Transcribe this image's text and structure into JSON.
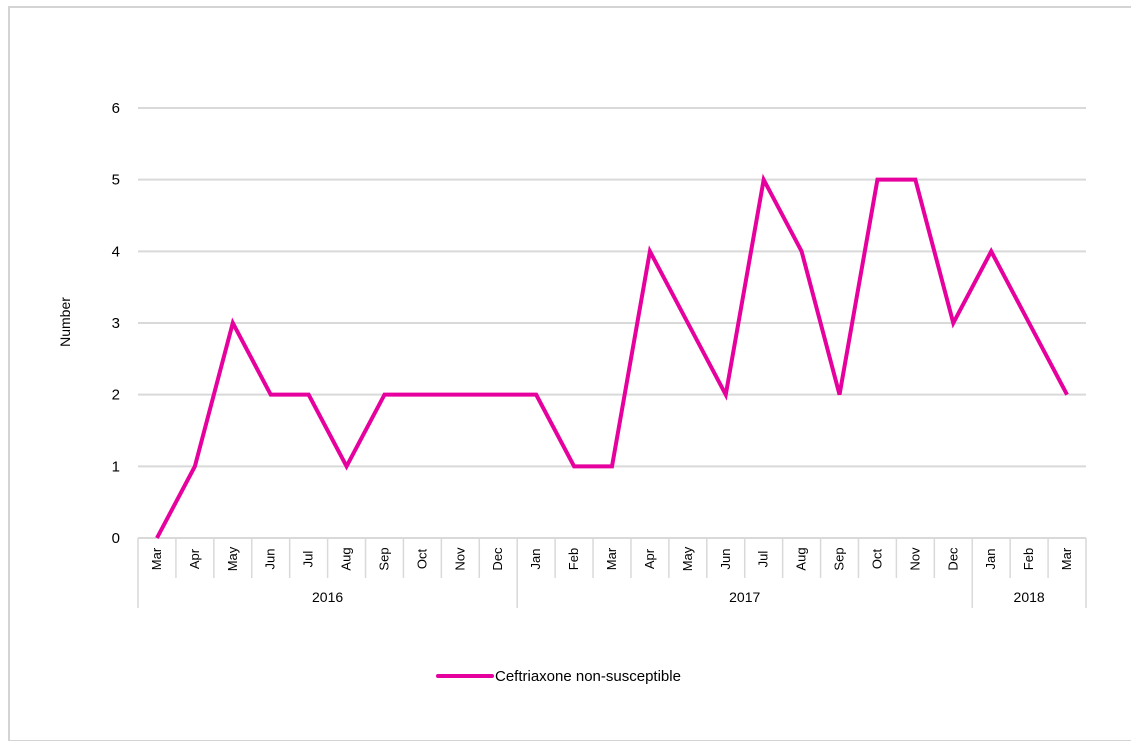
{
  "chart_data": {
    "type": "line",
    "title": "",
    "xlabel": "",
    "ylabel": "Number",
    "ylim": [
      0,
      6
    ],
    "yticks": [
      "0",
      "1",
      "2",
      "3",
      "4",
      "5",
      "6"
    ],
    "grid": true,
    "legend_position": "bottom",
    "categories": [
      "Mar",
      "Apr",
      "May",
      "Jun",
      "Jul",
      "Aug",
      "Sep",
      "Oct",
      "Nov",
      "Dec",
      "Jan",
      "Feb",
      "Mar",
      "Apr",
      "May",
      "Jun",
      "Jul",
      "Aug",
      "Sep",
      "Oct",
      "Nov",
      "Dec",
      "Jan",
      "Feb",
      "Mar"
    ],
    "groups": [
      {
        "label": "2016",
        "count": 10
      },
      {
        "label": "2017",
        "count": 12
      },
      {
        "label": "2018",
        "count": 3
      }
    ],
    "series": [
      {
        "name": "Ceftriaxone non-susceptible",
        "color": "#e6009e",
        "values": [
          0,
          1,
          3,
          2,
          2,
          1,
          2,
          2,
          2,
          2,
          2,
          1,
          1,
          4,
          3,
          2,
          5,
          4,
          2,
          5,
          5,
          3,
          4,
          3,
          2
        ]
      }
    ]
  }
}
